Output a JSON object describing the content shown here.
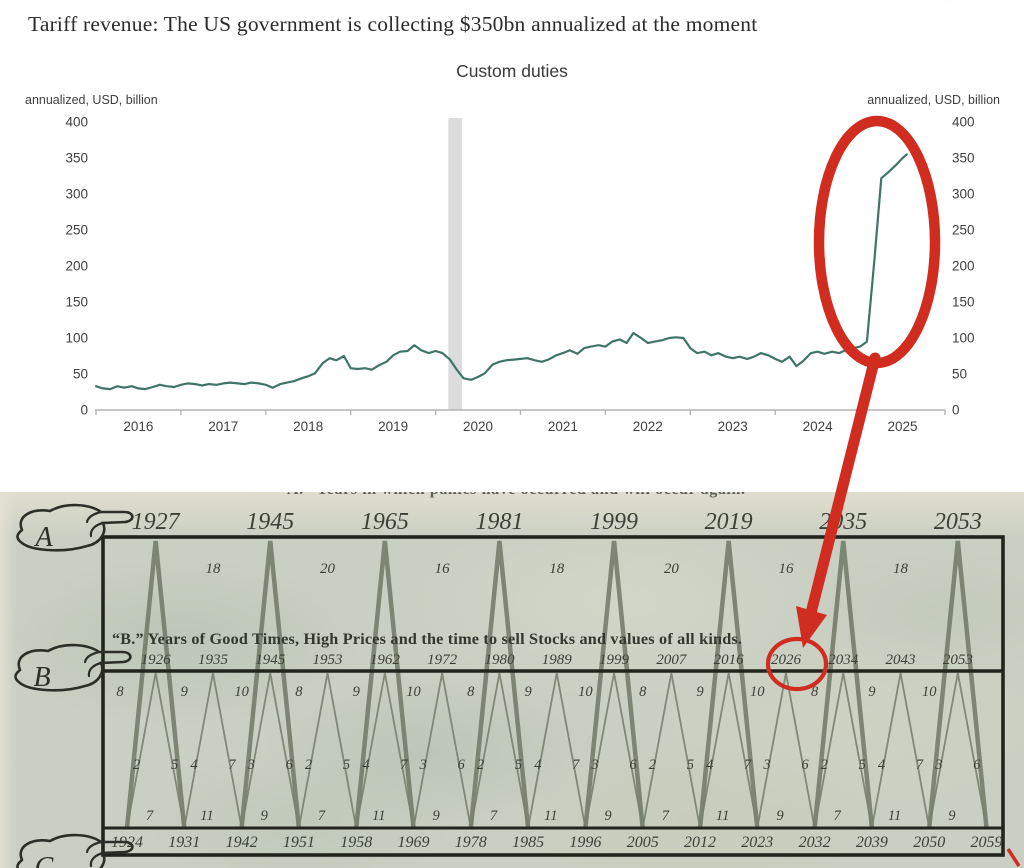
{
  "page": {
    "title_line": "Tariff revenue: The US government is collecting $350bn annualized at the moment",
    "corner_mark": "”"
  },
  "colors": {
    "line": "#3f7568",
    "annotation_red": "#d02c20",
    "recession_band": "#dcdcdc",
    "axis_text": "#3f3f3f",
    "axis_line": "#b3b3b3",
    "paper_ink": "#3b4036",
    "pyramid_line": "#6d7463",
    "box_line": "#22251e"
  },
  "chart_data": {
    "type": "line",
    "title": "Custom duties",
    "left_axis_label": "annualized, USD, billion",
    "right_axis_label": "annualized, USD, billion",
    "ylim": [
      0,
      400
    ],
    "y_ticks": [
      400,
      350,
      300,
      250,
      200,
      150,
      100,
      50,
      0
    ],
    "x_tick_years": [
      "2016",
      "2017",
      "2018",
      "2019",
      "2020",
      "2021",
      "2022",
      "2023",
      "2024",
      "2025"
    ],
    "grid": "off",
    "legend": "none",
    "recession_band_x": [
      2020.15,
      2020.31
    ],
    "annotation_note": "final spike circled in red, arrow points to Benner chart year 2026",
    "series": [
      {
        "name": "Custom duties, annualized",
        "points": [
          [
            2016.0,
            33
          ],
          [
            2016.08,
            30
          ],
          [
            2016.17,
            29
          ],
          [
            2016.25,
            33
          ],
          [
            2016.33,
            31
          ],
          [
            2016.42,
            33
          ],
          [
            2016.5,
            30
          ],
          [
            2016.58,
            29
          ],
          [
            2016.67,
            32
          ],
          [
            2016.75,
            35
          ],
          [
            2016.83,
            33
          ],
          [
            2016.92,
            32
          ],
          [
            2017.0,
            35
          ],
          [
            2017.08,
            37
          ],
          [
            2017.17,
            36
          ],
          [
            2017.25,
            34
          ],
          [
            2017.33,
            36
          ],
          [
            2017.42,
            35
          ],
          [
            2017.5,
            37
          ],
          [
            2017.58,
            38
          ],
          [
            2017.67,
            37
          ],
          [
            2017.75,
            36
          ],
          [
            2017.83,
            38
          ],
          [
            2017.92,
            37
          ],
          [
            2018.0,
            35
          ],
          [
            2018.08,
            31
          ],
          [
            2018.17,
            36
          ],
          [
            2018.25,
            38
          ],
          [
            2018.33,
            40
          ],
          [
            2018.42,
            44
          ],
          [
            2018.5,
            47
          ],
          [
            2018.58,
            51
          ],
          [
            2018.67,
            65
          ],
          [
            2018.75,
            72
          ],
          [
            2018.83,
            69
          ],
          [
            2018.92,
            75
          ],
          [
            2019.0,
            58
          ],
          [
            2019.08,
            57
          ],
          [
            2019.17,
            58
          ],
          [
            2019.25,
            56
          ],
          [
            2019.33,
            62
          ],
          [
            2019.42,
            67
          ],
          [
            2019.5,
            76
          ],
          [
            2019.58,
            81
          ],
          [
            2019.67,
            82
          ],
          [
            2019.75,
            90
          ],
          [
            2019.83,
            83
          ],
          [
            2019.92,
            79
          ],
          [
            2020.0,
            82
          ],
          [
            2020.08,
            79
          ],
          [
            2020.17,
            70
          ],
          [
            2020.25,
            56
          ],
          [
            2020.33,
            44
          ],
          [
            2020.42,
            42
          ],
          [
            2020.5,
            46
          ],
          [
            2020.58,
            51
          ],
          [
            2020.67,
            63
          ],
          [
            2020.75,
            67
          ],
          [
            2020.83,
            69
          ],
          [
            2020.92,
            70
          ],
          [
            2021.0,
            71
          ],
          [
            2021.08,
            72
          ],
          [
            2021.17,
            69
          ],
          [
            2021.25,
            67
          ],
          [
            2021.33,
            70
          ],
          [
            2021.42,
            76
          ],
          [
            2021.5,
            79
          ],
          [
            2021.58,
            83
          ],
          [
            2021.67,
            78
          ],
          [
            2021.75,
            86
          ],
          [
            2021.83,
            88
          ],
          [
            2021.92,
            90
          ],
          [
            2022.0,
            88
          ],
          [
            2022.08,
            95
          ],
          [
            2022.17,
            98
          ],
          [
            2022.25,
            93
          ],
          [
            2022.33,
            107
          ],
          [
            2022.42,
            100
          ],
          [
            2022.5,
            93
          ],
          [
            2022.58,
            95
          ],
          [
            2022.67,
            97
          ],
          [
            2022.75,
            100
          ],
          [
            2022.83,
            101
          ],
          [
            2022.92,
            100
          ],
          [
            2023.0,
            86
          ],
          [
            2023.08,
            79
          ],
          [
            2023.17,
            81
          ],
          [
            2023.25,
            76
          ],
          [
            2023.33,
            79
          ],
          [
            2023.42,
            74
          ],
          [
            2023.5,
            72
          ],
          [
            2023.58,
            74
          ],
          [
            2023.67,
            71
          ],
          [
            2023.75,
            74
          ],
          [
            2023.83,
            79
          ],
          [
            2023.92,
            76
          ],
          [
            2024.0,
            71
          ],
          [
            2024.08,
            67
          ],
          [
            2024.17,
            74
          ],
          [
            2024.25,
            61
          ],
          [
            2024.33,
            68
          ],
          [
            2024.42,
            79
          ],
          [
            2024.5,
            81
          ],
          [
            2024.58,
            78
          ],
          [
            2024.67,
            81
          ],
          [
            2024.75,
            79
          ],
          [
            2024.83,
            83
          ],
          [
            2024.92,
            86
          ],
          [
            2025.0,
            88
          ],
          [
            2025.08,
            95
          ],
          [
            2025.17,
            210
          ],
          [
            2025.25,
            322
          ],
          [
            2025.33,
            330
          ],
          [
            2025.42,
            340
          ],
          [
            2025.5,
            350
          ],
          [
            2025.55,
            355
          ]
        ]
      }
    ]
  },
  "benner_chart": {
    "top_caption": "“A.” Years in which panics have occurred and will occur again.",
    "row_a": {
      "hand_label": "A",
      "years": [
        "1927",
        "1945",
        "1965",
        "1981",
        "1999",
        "2019",
        "2035",
        "2053"
      ],
      "intervals": [
        "18",
        "20",
        "16",
        "18",
        "20",
        "16",
        "18"
      ]
    },
    "row_b": {
      "hand_label": "B",
      "title": "“B.” Years of Good Times, High Prices and the time to sell Stocks and values of all kinds.",
      "years": [
        "1926",
        "1935",
        "1945",
        "1953",
        "1962",
        "1972",
        "1980",
        "1989",
        "1999",
        "2007",
        "2016",
        "2026",
        "2034",
        "2043",
        "2053"
      ],
      "intervals": [
        "8",
        "9",
        "10",
        "8",
        "9",
        "10",
        "8",
        "9",
        "10",
        "8",
        "9",
        "10",
        "8",
        "9",
        "10"
      ],
      "highlighted_year": "2026"
    },
    "sub_intervals": [
      [
        "2",
        "5"
      ],
      [
        "4",
        "7"
      ],
      [
        "3",
        "6"
      ],
      [
        "2",
        "5"
      ],
      [
        "4",
        "7"
      ],
      [
        "3",
        "6"
      ],
      [
        "2",
        "5"
      ],
      [
        "4",
        "7"
      ],
      [
        "3",
        "6"
      ],
      [
        "2",
        "5"
      ],
      [
        "4",
        "7"
      ],
      [
        "3",
        "6"
      ],
      [
        "2",
        "5"
      ],
      [
        "4",
        "7"
      ],
      [
        "3",
        "6"
      ]
    ],
    "row_c": {
      "hand_label": "C",
      "years": [
        "1924",
        "1931",
        "1942",
        "1951",
        "1958",
        "1969",
        "1978",
        "1985",
        "1996",
        "2005",
        "2012",
        "2023",
        "2032",
        "2039",
        "2050",
        "2059"
      ],
      "intervals": [
        "7",
        "11",
        "9",
        "7",
        "11",
        "9",
        "7",
        "11",
        "9",
        "7",
        "11",
        "9",
        "7",
        "11",
        "9"
      ]
    }
  }
}
